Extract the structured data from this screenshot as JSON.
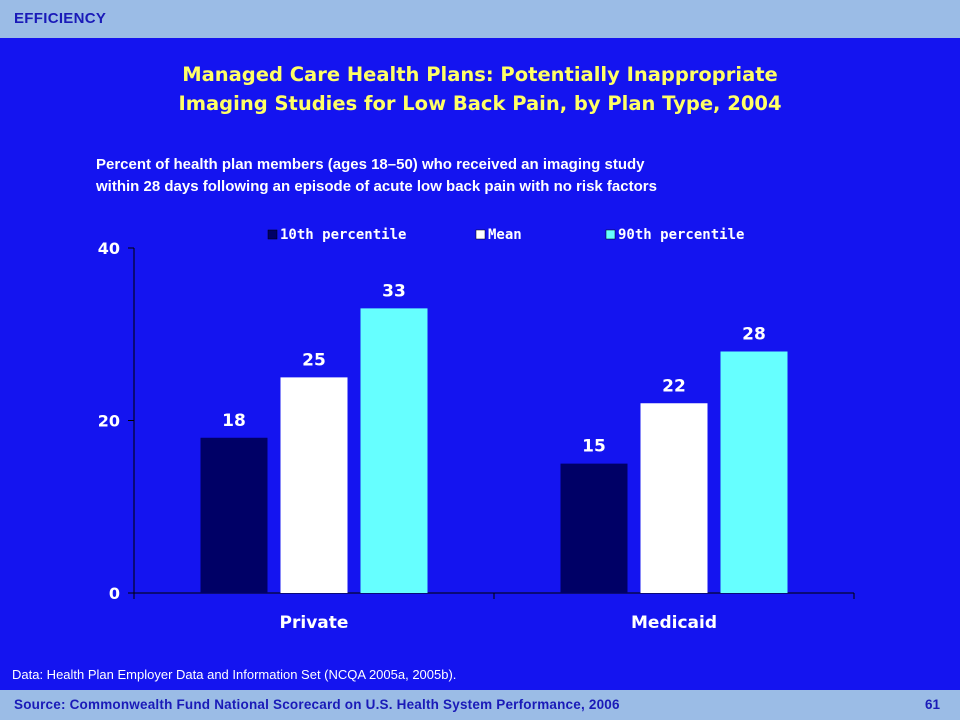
{
  "header": {
    "section": "EFFICIENCY"
  },
  "chart_data": {
    "type": "bar",
    "title": "Managed Care Health Plans: Potentially Inappropriate Imaging Studies for Low Back Pain, by Plan Type, 2004",
    "title_lines": [
      "Managed Care Health Plans: Potentially Inappropriate",
      "Imaging Studies for Low Back Pain, by Plan Type, 2004"
    ],
    "subtitle_lines": [
      "Percent of health plan members (ages 18–50) who received an imaging study",
      "within 28 days following an episode of acute low back pain with no risk factors"
    ],
    "categories": [
      "Private",
      "Medicaid"
    ],
    "series": [
      {
        "name": "10th percentile",
        "values": [
          18,
          15
        ],
        "color": "#000066"
      },
      {
        "name": "Mean",
        "values": [
          25,
          22
        ],
        "color": "#ffffff"
      },
      {
        "name": "90th percentile",
        "values": [
          33,
          28
        ],
        "color": "#66ffff"
      }
    ],
    "ylim": [
      0,
      40
    ],
    "yticks": [
      0,
      20,
      40
    ],
    "grid": false,
    "legend_position": "top"
  },
  "footnote": "Data: Health Plan Employer Data and Information Set (NCQA 2005a, 2005b).",
  "footer": {
    "source": "Source: Commonwealth Fund National Scorecard on U.S. Health System Performance, 2006",
    "page_number": "61"
  }
}
